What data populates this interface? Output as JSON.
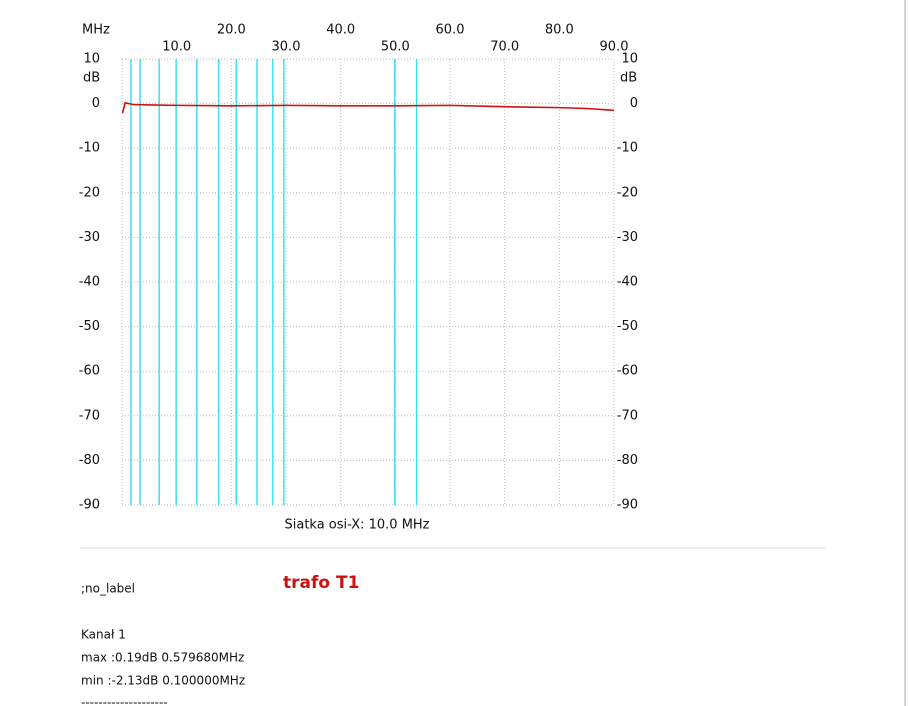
{
  "chart_data": {
    "type": "line",
    "x_label": "MHz",
    "y_label": "dB",
    "xlim": [
      0,
      90
    ],
    "ylim": [
      -90,
      10
    ],
    "xticks": [
      {
        "value": 10,
        "label": "10.0"
      },
      {
        "value": 20,
        "label": "20.0"
      },
      {
        "value": 30,
        "label": "30.0"
      },
      {
        "value": 40,
        "label": "40.0"
      },
      {
        "value": 50,
        "label": "50.0"
      },
      {
        "value": 60,
        "label": "60.0"
      },
      {
        "value": 70,
        "label": "70.0"
      },
      {
        "value": 80,
        "label": "80.0"
      },
      {
        "value": 90,
        "label": "90.0"
      }
    ],
    "yticks": [
      10,
      0,
      -10,
      -20,
      -30,
      -40,
      -50,
      -60,
      -70,
      -80,
      -90
    ],
    "grid": true,
    "markers_x": [
      1.65,
      3.3,
      6.8,
      9.9,
      13.7,
      17.7,
      20.9,
      24.7,
      27.6,
      29.6,
      49.9,
      53.9
    ],
    "marker_color": "#40e0f0",
    "series": [
      {
        "name": "Kanał 1",
        "color": "#d01010",
        "x": [
          0.1,
          0.58,
          2,
          5,
          10,
          20,
          30,
          40,
          50,
          60,
          70,
          80,
          85,
          90
        ],
        "values": [
          -2.13,
          0.19,
          -0.2,
          -0.3,
          -0.4,
          -0.5,
          -0.4,
          -0.5,
          -0.5,
          -0.4,
          -0.7,
          -0.9,
          -1.1,
          -1.5
        ]
      }
    ],
    "grid_note": "Siatka osi-X: 10.0 MHz"
  },
  "footer": {
    "label": ";no_label",
    "title": "trafo T1",
    "channel": "Kanał 1",
    "max": "max :0.19dB 0.579680MHz",
    "min": "min :-2.13dB 0.100000MHz",
    "separator": "--------------------"
  }
}
